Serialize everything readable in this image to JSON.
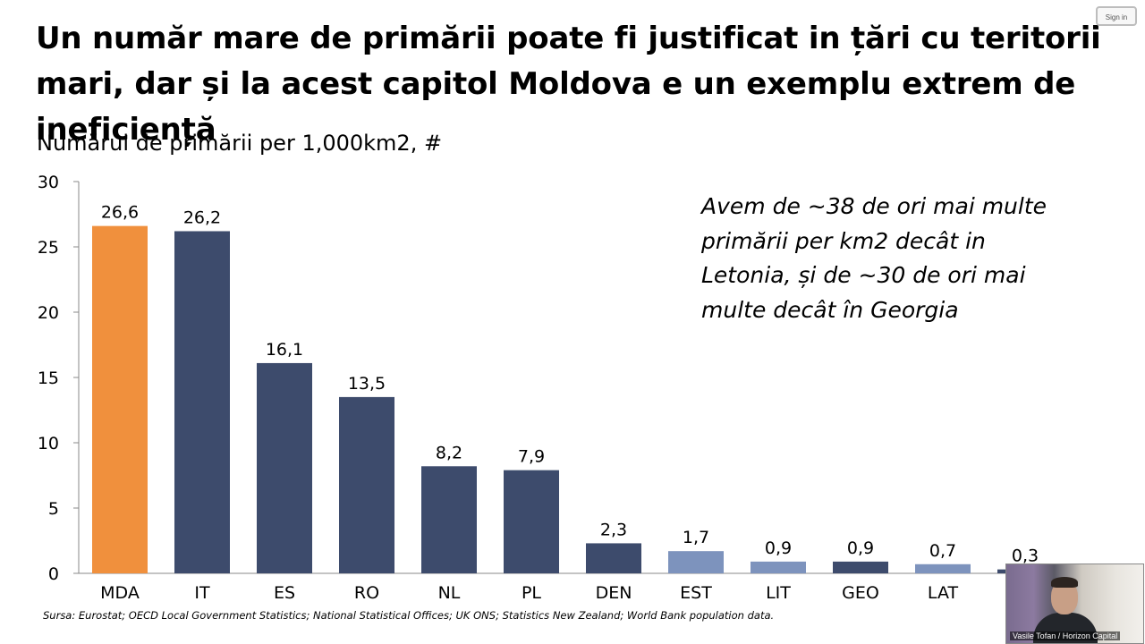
{
  "title": "Un număr mare de primării poate fi justificat in țări cu teritorii mari, dar și la acest capitol Moldova e un exemplu extrem de ineficiență",
  "subtitle": "Numărul de primării per 1,000km2, #",
  "annotation": "Avem de ~38 de ori mai multe primării per km2 decât in Letonia, și de ~30 de ori mai multe decât în Georgia",
  "source": "Sursa: Eurostat; OECD Local Government Statistics; National Statistical Offices; UK ONS; Statistics New Zealand; World Bank population data.",
  "signin_label": "Sign in",
  "webcam_caption": "Vasile Tofan / Horizon Capital",
  "colors": {
    "highlight": "#f0903d",
    "dark": "#3d4b6c",
    "light": "#7d93bd"
  },
  "chart_data": {
    "type": "bar",
    "categories": [
      "MDA",
      "IT",
      "ES",
      "RO",
      "NL",
      "PL",
      "DEN",
      "EST",
      "LIT",
      "GEO",
      "LAT",
      ""
    ],
    "values": [
      26.6,
      26.2,
      16.1,
      13.5,
      8.2,
      7.9,
      2.3,
      1.7,
      0.9,
      0.9,
      0.7,
      0.3
    ],
    "value_labels": [
      "26,6",
      "26,2",
      "16,1",
      "13,5",
      "8,2",
      "7,9",
      "2,3",
      "1,7",
      "0,9",
      "0,9",
      "0,7",
      "0,3"
    ],
    "bar_colors": [
      "highlight",
      "dark",
      "dark",
      "dark",
      "dark",
      "dark",
      "dark",
      "light",
      "light",
      "dark",
      "light",
      "dark"
    ],
    "ylim": [
      0,
      30
    ],
    "yticks": [
      0,
      5,
      10,
      15,
      20,
      25,
      30
    ],
    "xlabel": "",
    "ylabel": "",
    "grid": false
  }
}
